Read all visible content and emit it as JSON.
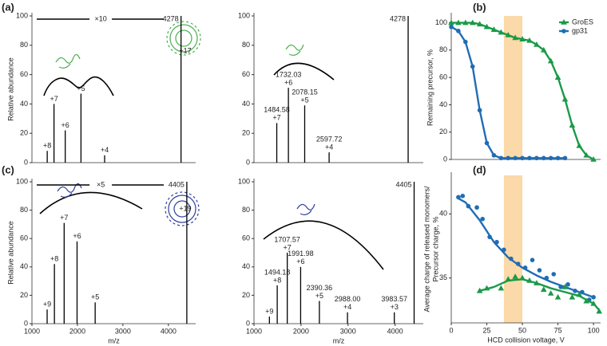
{
  "chart_data": [
    {
      "type": "spectrum",
      "panel": "(a)",
      "ylabel": "Relative abundance",
      "scale_label": "×10",
      "complex_charge": "+17",
      "xlim": [
        1000,
        4600
      ],
      "ylim": [
        0,
        100
      ],
      "yticks": [
        0,
        20,
        40,
        60,
        80,
        100
      ],
      "color": "#000000",
      "x": [
        1336,
        1485,
        1732,
        2078,
        2598,
        4278
      ],
      "values": [
        8,
        40,
        22,
        47,
        5,
        100
      ],
      "charges": [
        "+8",
        "+7",
        "+6",
        "+5",
        "+4",
        null
      ],
      "x_labels": [
        null,
        null,
        null,
        null,
        null,
        "4278"
      ]
    },
    {
      "type": "spectrum",
      "xlim": [
        1000,
        4600
      ],
      "ylim": [
        0,
        100
      ],
      "yticks": [
        0,
        20,
        40,
        60,
        80,
        100
      ],
      "color": "#000000",
      "x": [
        1484.58,
        1732.03,
        2078.15,
        2597.72,
        4278
      ],
      "values": [
        27,
        51,
        39,
        7,
        100
      ],
      "charges": [
        "+7",
        "+6",
        "+5",
        "+4",
        null
      ],
      "x_labels": [
        "1484.58",
        "1732.03",
        "2078.15",
        "2597.72",
        "4278"
      ]
    },
    {
      "type": "spectrum",
      "panel": "(c)",
      "ylabel": "Relative abundance",
      "xlabel": "m/z",
      "scale_label": "×5",
      "complex_charge": "+19",
      "xlim": [
        1000,
        4600
      ],
      "xticks": [
        1000,
        2000,
        3000,
        4000
      ],
      "ylim": [
        0,
        100
      ],
      "yticks": [
        0,
        20,
        40,
        60,
        80,
        100
      ],
      "color": "#000000",
      "x": [
        1334,
        1494,
        1708,
        1992,
        2390,
        4405
      ],
      "values": [
        10,
        42,
        71,
        58,
        15,
        100
      ],
      "charges": [
        "+9",
        "+8",
        "+7",
        "+6",
        "+5",
        null
      ],
      "x_labels": [
        null,
        null,
        null,
        null,
        null,
        "4405"
      ]
    },
    {
      "type": "spectrum",
      "xlabel": "m/z",
      "xlim": [
        1000,
        4600
      ],
      "xticks": [
        1000,
        2000,
        3000,
        4000
      ],
      "ylim": [
        0,
        100
      ],
      "yticks": [
        0,
        20,
        40,
        60,
        80,
        100
      ],
      "color": "#000000",
      "x": [
        1328,
        1494.18,
        1707.57,
        1991.98,
        2390.36,
        2988.0,
        3983.57,
        4405
      ],
      "values": [
        5,
        27,
        50,
        40,
        16,
        8,
        8,
        100
      ],
      "charges": [
        "+9",
        "+8",
        "+7",
        "+6",
        "+5",
        "+4",
        "+3",
        null
      ],
      "x_labels": [
        null,
        "1494.18",
        "1707.57",
        "1991.98",
        "2390.36",
        "2988.00",
        "3983.57",
        "4405"
      ]
    },
    {
      "type": "line",
      "panel": "(b)",
      "ylabel": "Remaining precursor, %",
      "highlight": [
        37,
        50
      ],
      "highlight_color": "#fcd9a8",
      "xlim": [
        0,
        105
      ],
      "ylim": [
        0,
        105
      ],
      "yticks": [
        0,
        20,
        40,
        60,
        80,
        100
      ],
      "legend": "top-right",
      "series": [
        {
          "name": "GroES",
          "color": "#1a9a48",
          "marker": "triangle",
          "x": [
            0,
            5,
            10,
            15,
            20,
            25,
            30,
            35,
            40,
            45,
            50,
            55,
            60,
            65,
            70,
            75,
            80,
            85,
            90,
            95,
            100
          ],
          "values": [
            100,
            100,
            100,
            100,
            99,
            97,
            95,
            93,
            91,
            89,
            88,
            87,
            84,
            80,
            72,
            60,
            44,
            25,
            10,
            3,
            0
          ]
        },
        {
          "name": "gp31",
          "color": "#1f6db5",
          "marker": "circle",
          "x": [
            0,
            5,
            10,
            15,
            20,
            25,
            30,
            35,
            40,
            45,
            50,
            55,
            60,
            65,
            70,
            75,
            80
          ],
          "values": [
            97,
            94,
            86,
            68,
            36,
            12,
            3,
            1,
            1,
            1,
            1,
            1,
            1,
            1,
            1,
            1,
            1
          ]
        }
      ]
    },
    {
      "type": "scatter",
      "panel": "(d)",
      "ylabel": [
        "Average charge of released monomers/",
        "Precursor charge, %"
      ],
      "xlabel": "HCD collision voltage, V",
      "highlight": [
        37,
        50
      ],
      "highlight_color": "#fcd9a8",
      "xlim": [
        0,
        105
      ],
      "xticks": [
        0,
        25,
        50,
        75,
        100
      ],
      "ylim": [
        31.5,
        43
      ],
      "yticks": [
        35,
        40
      ],
      "series": [
        {
          "name": "gp31",
          "color": "#1f6db5",
          "marker": "circle",
          "x": [
            5,
            8,
            12,
            18,
            22,
            27,
            32,
            37,
            42,
            47,
            52,
            57,
            62,
            67,
            72,
            77,
            82,
            87,
            92,
            97,
            100
          ],
          "values": [
            41.3,
            41.4,
            40.6,
            40.5,
            39.6,
            38.2,
            37.8,
            37.2,
            36.5,
            36.1,
            35.8,
            36.4,
            35.6,
            35.0,
            35.3,
            34.3,
            34.5,
            34.0,
            33.9,
            33.3,
            33.5
          ],
          "fit": {
            "x": [
              5,
              10,
              20,
              30,
              40,
              50,
              60,
              70,
              80,
              90,
              100
            ],
            "values": [
              41.2,
              40.9,
              39.5,
              37.8,
              36.6,
              35.8,
              35.2,
              34.7,
              34.3,
              33.9,
              33.5
            ]
          }
        },
        {
          "name": "GroES",
          "color": "#1a9a48",
          "marker": "triangle",
          "x": [
            20,
            25,
            35,
            40,
            45,
            50,
            55,
            60,
            65,
            70,
            75,
            80,
            85,
            90,
            95,
            100,
            104
          ],
          "values": [
            34.0,
            34.2,
            34.2,
            34.9,
            35.1,
            35.0,
            34.8,
            34.6,
            34.1,
            33.8,
            33.5,
            34.3,
            33.5,
            33.7,
            33.2,
            33.0,
            32.4
          ],
          "fit": {
            "x": [
              20,
              30,
              40,
              50,
              60,
              70,
              80,
              90,
              100,
              104
            ],
            "values": [
              34.0,
              34.3,
              34.8,
              34.9,
              34.6,
              34.2,
              33.9,
              33.6,
              33.0,
              32.5
            ]
          }
        }
      ]
    }
  ]
}
